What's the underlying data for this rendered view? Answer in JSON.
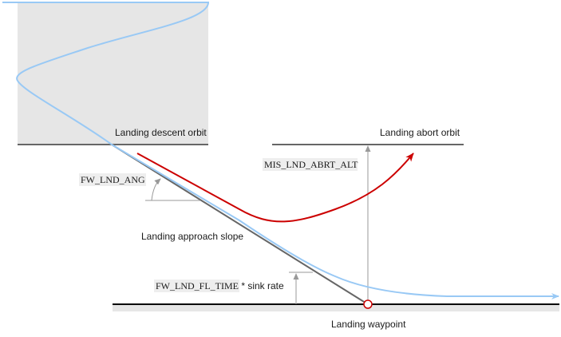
{
  "labels": {
    "descent_orbit": "Landing descent orbit",
    "abort_orbit": "Landing abort orbit",
    "abort_alt_param": "MIS_LND_ABRT_ALT",
    "angle_param": "FW_LND_ANG",
    "approach_slope": "Landing approach slope",
    "flare_param": "FW_LND_FL_TIME",
    "flare_suffix": " * sink rate",
    "landing_waypoint": "Landing waypoint"
  },
  "colors": {
    "orbit_fill": "#e6e6e6",
    "flight_path": "#99c9f5",
    "abort_path": "#cc0000",
    "slope_line": "#666666",
    "ground_line": "#000000",
    "ground_fill": "#e6e6e6",
    "dimension_line": "#999999",
    "waypoint_marker": "#cc0000"
  }
}
